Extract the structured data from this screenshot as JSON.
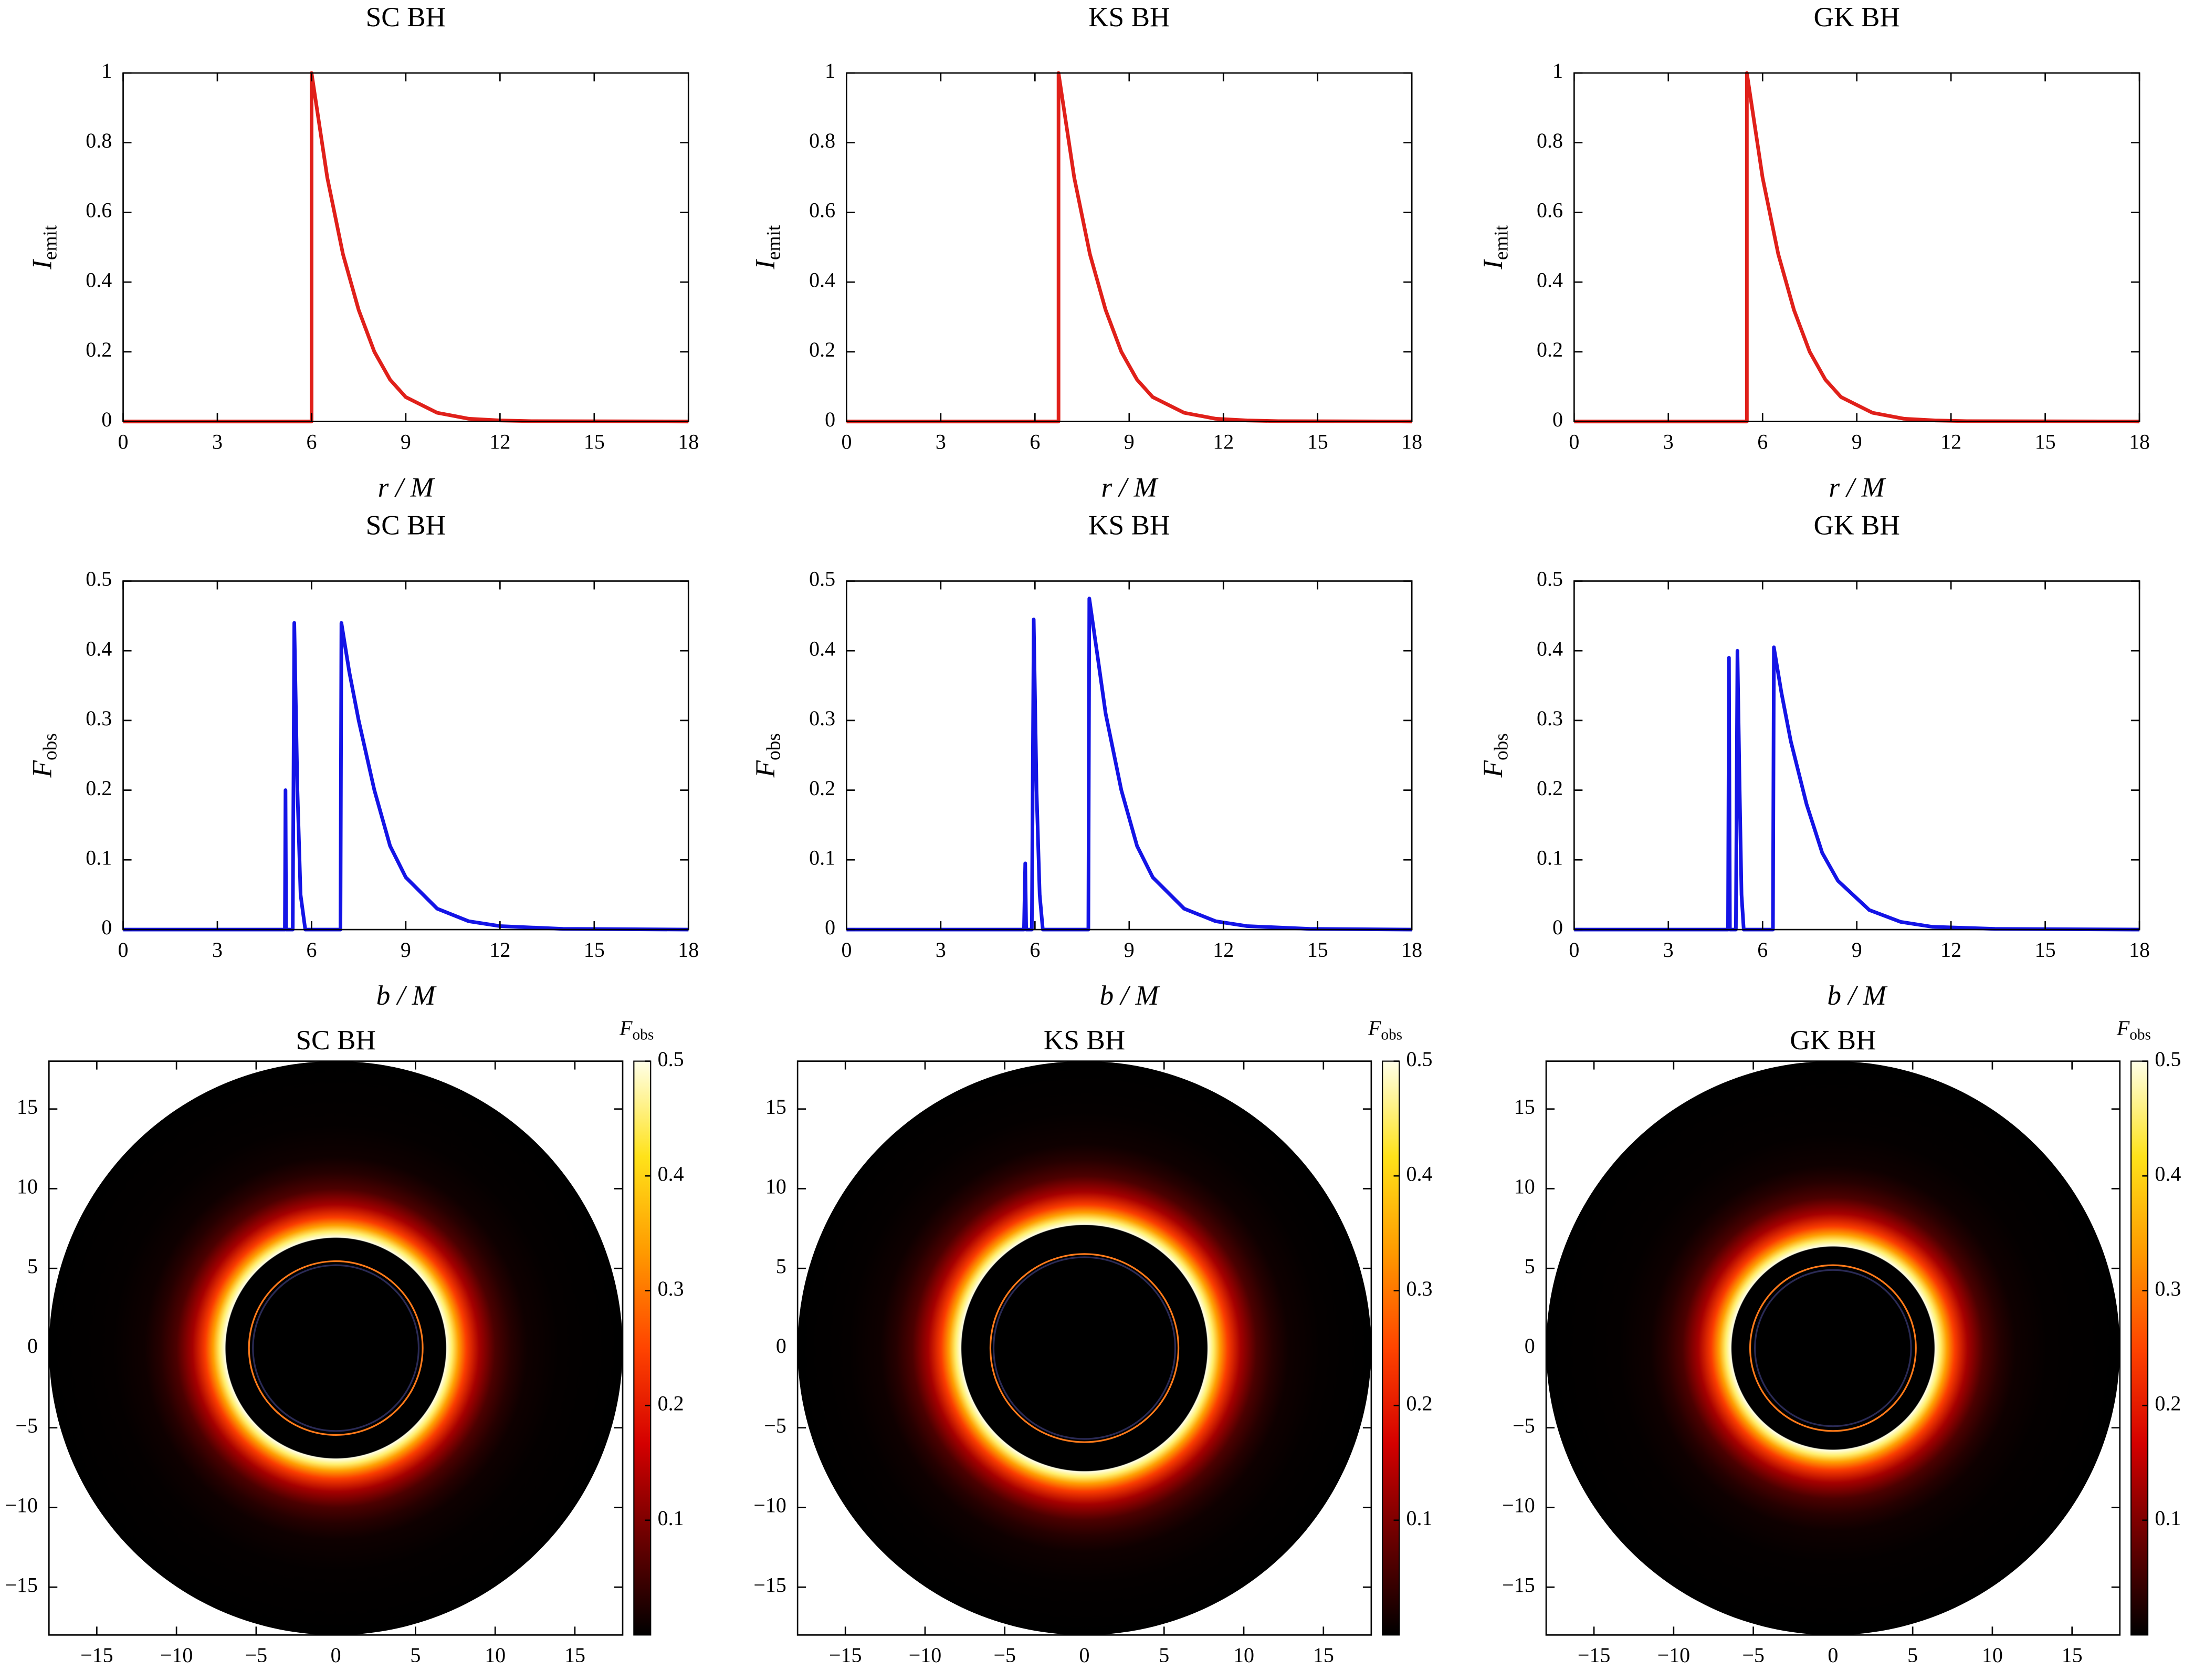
{
  "chart_data": [
    {
      "type": "line",
      "title": "SC BH",
      "xlabel": "r / M",
      "ylabel": "I",
      "ylabel_sub": "emit",
      "x": [
        0,
        6,
        6,
        6.5,
        7,
        7.5,
        8,
        8.5,
        9,
        10,
        11,
        12,
        13,
        18
      ],
      "values": [
        0,
        0,
        1,
        0.7,
        0.48,
        0.32,
        0.2,
        0.12,
        0.07,
        0.025,
        0.008,
        0.003,
        0.001,
        0
      ],
      "color": "#e0201a",
      "vline": 6,
      "vline_color": "#44dd44",
      "xlim": [
        0,
        18
      ],
      "xticks": [
        0,
        3,
        6,
        9,
        12,
        15,
        18
      ],
      "ylim": [
        0,
        1
      ],
      "yticks": [
        0,
        0.2,
        0.4,
        0.6,
        0.8,
        1
      ]
    },
    {
      "type": "line",
      "title": "KS BH",
      "xlabel": "r / M",
      "ylabel": "I",
      "ylabel_sub": "emit",
      "x": [
        0,
        6.75,
        6.75,
        7.25,
        7.75,
        8.25,
        8.75,
        9.25,
        9.75,
        10.75,
        11.75,
        12.75,
        13.75,
        18
      ],
      "values": [
        0,
        0,
        1,
        0.7,
        0.48,
        0.32,
        0.2,
        0.12,
        0.07,
        0.025,
        0.008,
        0.003,
        0.001,
        0
      ],
      "color": "#e0201a",
      "vline": 6.75,
      "vline_color": "#44dd44",
      "xlim": [
        0,
        18
      ],
      "xticks": [
        0,
        3,
        6,
        9,
        12,
        15,
        18
      ],
      "ylim": [
        0,
        1
      ],
      "yticks": [
        0,
        0.2,
        0.4,
        0.6,
        0.8,
        1
      ]
    },
    {
      "type": "line",
      "title": "GK BH",
      "xlabel": "r / M",
      "ylabel": "I",
      "ylabel_sub": "emit",
      "x": [
        0,
        5.5,
        5.5,
        6,
        6.5,
        7,
        7.5,
        8,
        8.5,
        9.5,
        10.5,
        11.5,
        12.5,
        18
      ],
      "values": [
        0,
        0,
        1,
        0.7,
        0.48,
        0.32,
        0.2,
        0.12,
        0.07,
        0.025,
        0.008,
        0.003,
        0.001,
        0
      ],
      "color": "#e0201a",
      "vline": 5.5,
      "vline_color": "#44dd44",
      "xlim": [
        0,
        18
      ],
      "xticks": [
        0,
        3,
        6,
        9,
        12,
        15,
        18
      ],
      "ylim": [
        0,
        1
      ],
      "yticks": [
        0,
        0.2,
        0.4,
        0.6,
        0.8,
        1
      ]
    },
    {
      "type": "line",
      "title": "SC BH",
      "xlabel": "b / M",
      "ylabel": "F",
      "ylabel_sub": "obs",
      "x": [
        0,
        5.15,
        5.17,
        5.19,
        5.4,
        5.45,
        5.55,
        5.65,
        5.8,
        6.92,
        6.95,
        7.2,
        7.5,
        8,
        8.5,
        9,
        10,
        11,
        12,
        14,
        18
      ],
      "values": [
        0,
        0,
        0.2,
        0,
        0,
        0.44,
        0.2,
        0.05,
        0,
        0,
        0.44,
        0.37,
        0.3,
        0.2,
        0.12,
        0.075,
        0.03,
        0.012,
        0.005,
        0.001,
        0
      ],
      "color": "#1414e6",
      "xlim": [
        0,
        18
      ],
      "xticks": [
        0,
        3,
        6,
        9,
        12,
        15,
        18
      ],
      "ylim": [
        0,
        0.5
      ],
      "yticks": [
        0,
        0.1,
        0.2,
        0.3,
        0.4,
        0.5
      ]
    },
    {
      "type": "line",
      "title": "KS BH",
      "xlabel": "b / M",
      "ylabel": "F",
      "ylabel_sub": "obs",
      "x": [
        0,
        5.65,
        5.69,
        5.72,
        5.9,
        5.96,
        6.05,
        6.15,
        6.25,
        7.7,
        7.73,
        8,
        8.25,
        8.75,
        9.25,
        9.75,
        10.75,
        11.75,
        12.75,
        14.75,
        18
      ],
      "values": [
        0,
        0,
        0.095,
        0,
        0,
        0.445,
        0.2,
        0.05,
        0,
        0,
        0.475,
        0.39,
        0.31,
        0.2,
        0.12,
        0.075,
        0.03,
        0.012,
        0.005,
        0.001,
        0
      ],
      "color": "#1414e6",
      "xlim": [
        0,
        18
      ],
      "xticks": [
        0,
        3,
        6,
        9,
        12,
        15,
        18
      ],
      "ylim": [
        0,
        0.5
      ],
      "yticks": [
        0,
        0.1,
        0.2,
        0.3,
        0.4,
        0.5
      ]
    },
    {
      "type": "line",
      "title": "GK BH",
      "xlabel": "b / M",
      "ylabel": "F",
      "ylabel_sub": "obs",
      "x": [
        0,
        4.9,
        4.93,
        4.96,
        5.15,
        5.2,
        5.27,
        5.33,
        5.4,
        6.33,
        6.36,
        6.6,
        6.9,
        7.4,
        7.9,
        8.4,
        9.4,
        10.4,
        11.4,
        13.4,
        18
      ],
      "values": [
        0,
        0,
        0.39,
        0,
        0,
        0.4,
        0.2,
        0.05,
        0,
        0,
        0.405,
        0.34,
        0.27,
        0.18,
        0.11,
        0.07,
        0.028,
        0.011,
        0.004,
        0.001,
        0
      ],
      "color": "#1414e6",
      "xlim": [
        0,
        18
      ],
      "xticks": [
        0,
        3,
        6,
        9,
        12,
        15,
        18
      ],
      "ylim": [
        0,
        0.5
      ],
      "yticks": [
        0,
        0.1,
        0.2,
        0.3,
        0.4,
        0.5
      ]
    },
    {
      "type": "density",
      "title": "SC BH",
      "colorbar_label": "F",
      "colorbar_label_sub": "obs",
      "r": [
        0,
        6.9,
        6.95,
        7.3,
        7.7,
        8.2,
        9,
        10,
        11,
        12,
        14,
        18
      ],
      "values": [
        0,
        0,
        0.5,
        0.45,
        0.34,
        0.24,
        0.13,
        0.06,
        0.03,
        0.012,
        0.003,
        0
      ],
      "rings": [
        {
          "radius": 5.45,
          "color": "#ff7a1a"
        },
        {
          "radius": 5.2,
          "color": "#2a2a55"
        }
      ],
      "colormap": [
        "#000000",
        "#6a0000",
        "#d40000",
        "#ff4400",
        "#ff9a00",
        "#ffe21a",
        "#ffffe8"
      ],
      "xlim": [
        -18,
        18
      ],
      "ylim": [
        -18,
        18
      ],
      "xticks": [
        {
          "value": -15,
          "label": "−15"
        },
        {
          "value": -10,
          "label": "−10"
        },
        {
          "value": -5,
          "label": "−5"
        },
        0,
        5,
        10,
        15
      ],
      "yticks": [
        {
          "value": -15,
          "label": "−15"
        },
        {
          "value": -10,
          "label": "−10"
        },
        {
          "value": -5,
          "label": "−5"
        },
        0,
        5,
        10,
        15
      ],
      "clim": [
        0,
        0.5
      ],
      "cticks": [
        0.1,
        0.2,
        0.3,
        0.4,
        0.5
      ]
    },
    {
      "type": "density",
      "title": "KS BH",
      "colorbar_label": "F",
      "colorbar_label_sub": "obs",
      "r": [
        0,
        7.7,
        7.75,
        8.1,
        8.5,
        9,
        9.8,
        10.8,
        11.8,
        12.8,
        14.8,
        18
      ],
      "values": [
        0,
        0,
        0.5,
        0.45,
        0.34,
        0.24,
        0.13,
        0.06,
        0.03,
        0.012,
        0.003,
        0
      ],
      "rings": [
        {
          "radius": 5.9,
          "color": "#ff7a1a"
        },
        {
          "radius": 5.7,
          "color": "#2a2a55"
        }
      ],
      "colormap": [
        "#000000",
        "#6a0000",
        "#d40000",
        "#ff4400",
        "#ff9a00",
        "#ffe21a",
        "#ffffe8"
      ],
      "xlim": [
        -18,
        18
      ],
      "ylim": [
        -18,
        18
      ],
      "xticks": [
        {
          "value": -15,
          "label": "−15"
        },
        {
          "value": -10,
          "label": "−10"
        },
        {
          "value": -5,
          "label": "−5"
        },
        0,
        5,
        10,
        15
      ],
      "yticks": [
        {
          "value": -15,
          "label": "−15"
        },
        {
          "value": -10,
          "label": "−10"
        },
        {
          "value": -5,
          "label": "−5"
        },
        0,
        5,
        10,
        15
      ],
      "clim": [
        0,
        0.5
      ],
      "cticks": [
        0.1,
        0.2,
        0.3,
        0.4,
        0.5
      ]
    },
    {
      "type": "density",
      "title": "GK BH",
      "colorbar_label": "F",
      "colorbar_label_sub": "obs",
      "r": [
        0,
        6.35,
        6.4,
        6.75,
        7.15,
        7.65,
        8.45,
        9.45,
        10.45,
        11.45,
        13.45,
        18
      ],
      "values": [
        0,
        0,
        0.5,
        0.45,
        0.34,
        0.24,
        0.13,
        0.06,
        0.03,
        0.012,
        0.003,
        0
      ],
      "rings": [
        {
          "radius": 5.2,
          "color": "#ff7a1a"
        },
        {
          "radius": 4.9,
          "color": "#2a2a55"
        }
      ],
      "colormap": [
        "#000000",
        "#6a0000",
        "#d40000",
        "#ff4400",
        "#ff9a00",
        "#ffe21a",
        "#ffffe8"
      ],
      "xlim": [
        -18,
        18
      ],
      "ylim": [
        -18,
        18
      ],
      "xticks": [
        {
          "value": -15,
          "label": "−15"
        },
        {
          "value": -10,
          "label": "−10"
        },
        {
          "value": -5,
          "label": "−5"
        },
        0,
        5,
        10,
        15
      ],
      "yticks": [
        {
          "value": -15,
          "label": "−15"
        },
        {
          "value": -10,
          "label": "−10"
        },
        {
          "value": -5,
          "label": "−5"
        },
        0,
        5,
        10,
        15
      ],
      "clim": [
        0,
        0.5
      ],
      "cticks": [
        0.1,
        0.2,
        0.3,
        0.4,
        0.5
      ]
    }
  ]
}
